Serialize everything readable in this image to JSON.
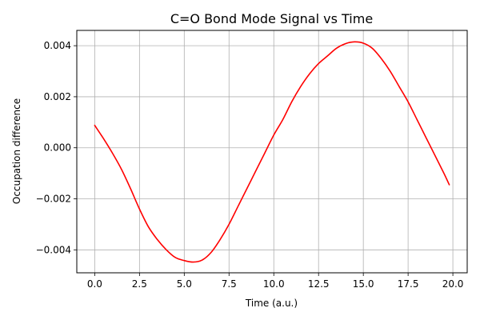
{
  "chart_data": {
    "type": "line",
    "title": "C=O Bond Mode Signal vs Time",
    "xlabel": "Time (a.u.)",
    "ylabel": "Occupation difference",
    "xlim": [
      -1.0,
      20.8
    ],
    "ylim": [
      -0.0049,
      0.0046
    ],
    "grid": true,
    "xticks": [
      0.0,
      2.5,
      5.0,
      7.5,
      10.0,
      12.5,
      15.0,
      17.5,
      20.0
    ],
    "xtick_labels": [
      "0.0",
      "2.5",
      "5.0",
      "7.5",
      "10.0",
      "12.5",
      "15.0",
      "17.5",
      "20.0"
    ],
    "yticks": [
      -0.004,
      -0.002,
      0.0,
      0.002,
      0.004
    ],
    "ytick_labels": [
      "−0.004",
      "−0.002",
      "0.000",
      "0.002",
      "0.004"
    ],
    "series": [
      {
        "color": "#ff0000",
        "x": [
          0.0,
          0.5,
          1.0,
          1.5,
          2.0,
          2.5,
          3.0,
          3.5,
          4.0,
          4.5,
          5.0,
          5.5,
          6.0,
          6.5,
          7.0,
          7.5,
          8.0,
          8.5,
          9.0,
          9.5,
          10.0,
          10.5,
          11.0,
          11.5,
          12.0,
          12.5,
          13.0,
          13.5,
          14.0,
          14.5,
          15.0,
          15.5,
          16.0,
          16.5,
          17.0,
          17.5,
          18.0,
          18.5,
          19.0,
          19.5,
          19.8
        ],
        "y": [
          0.00088,
          0.00035,
          -0.00022,
          -0.00085,
          -0.0016,
          -0.0024,
          -0.0031,
          -0.0036,
          -0.004,
          -0.0043,
          -0.00442,
          -0.00448,
          -0.0044,
          -0.0041,
          -0.0036,
          -0.003,
          -0.0023,
          -0.0016,
          -0.0009,
          -0.0002,
          0.0005,
          0.0011,
          0.0018,
          0.0024,
          0.0029,
          0.0033,
          0.0036,
          0.0039,
          0.00408,
          0.00415,
          0.0041,
          0.0039,
          0.0035,
          0.003,
          0.0024,
          0.0018,
          0.0011,
          0.0004,
          -0.0003,
          -0.001,
          -0.00145
        ]
      }
    ]
  }
}
